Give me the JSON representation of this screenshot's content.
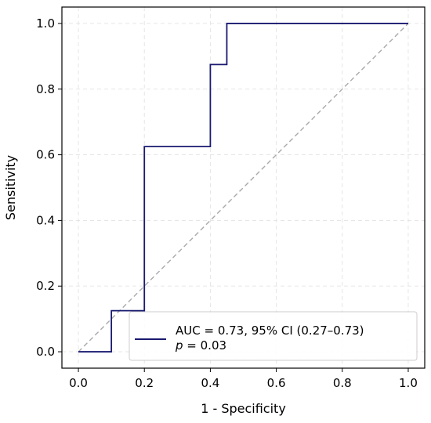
{
  "chart_data": {
    "type": "line",
    "title": "",
    "xlabel": "1 - Specificity",
    "ylabel": "Sensitivity",
    "xlim": [
      -0.05,
      1.05
    ],
    "ylim": [
      -0.05,
      1.05
    ],
    "xticks": [
      0.0,
      0.2,
      0.4,
      0.6,
      0.8,
      1.0
    ],
    "yticks": [
      0.0,
      0.2,
      0.4,
      0.6,
      0.8,
      1.0
    ],
    "xtick_labels": [
      "0.0",
      "0.2",
      "0.4",
      "0.6",
      "0.8",
      "1.0"
    ],
    "ytick_labels": [
      "0.0",
      "0.2",
      "0.4",
      "0.6",
      "0.8",
      "1.0"
    ],
    "grid": true,
    "legend_position": "lower-right",
    "series": [
      {
        "name": "AUC = 0.73, 95% CI (0.27–0.73)",
        "color": "#191970",
        "style": "step",
        "x": [
          0.0,
          0.1,
          0.1,
          0.2,
          0.2,
          0.4,
          0.4,
          0.45,
          0.45,
          1.0
        ],
        "y": [
          0.0,
          0.0,
          0.125,
          0.125,
          0.625,
          0.625,
          0.875,
          0.875,
          1.0,
          1.0
        ]
      },
      {
        "name": "",
        "color": "#a9a9a9",
        "style": "dashed",
        "x": [
          0.0,
          1.0
        ],
        "y": [
          0.0,
          1.0
        ]
      }
    ],
    "legend": {
      "line1": "AUC = 0.73, 95% CI (0.27–0.73)",
      "line2_italic": "p",
      "line2_rest": " = 0.03"
    }
  }
}
